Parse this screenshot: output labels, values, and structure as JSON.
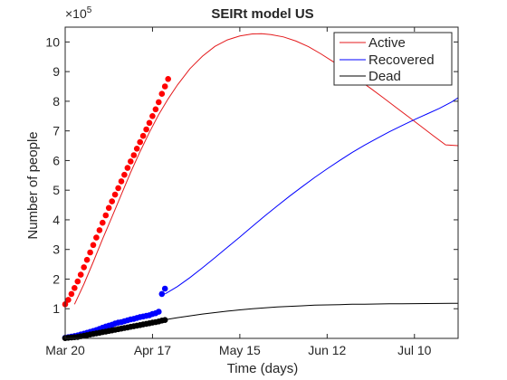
{
  "chart_data": {
    "type": "line",
    "title": "SEIRt model US",
    "xlabel": "Time (days)",
    "ylabel": "Number of people",
    "y_multiplier": "×10",
    "y_multiplier_exponent": "5",
    "xlim": [
      0,
      126
    ],
    "ylim": [
      0,
      10.5
    ],
    "x_ticks": [
      {
        "day": 0,
        "label": "Mar 20"
      },
      {
        "day": 28,
        "label": "Apr 17"
      },
      {
        "day": 56,
        "label": "May 15"
      },
      {
        "day": 84,
        "label": "Jun 12"
      },
      {
        "day": 112,
        "label": "Jul 10"
      }
    ],
    "y_ticks": [
      1,
      2,
      3,
      4,
      5,
      6,
      7,
      8,
      9,
      10
    ],
    "legend": {
      "position": "top-right",
      "entries": [
        "Active",
        "Recovered",
        "Dead"
      ]
    },
    "grid": false,
    "series": [
      {
        "name": "Active",
        "kind": "model",
        "color": "#e41a1c",
        "x": [
          3,
          6,
          9,
          12,
          15,
          18,
          21,
          24,
          27,
          30,
          33,
          36,
          40,
          44,
          48,
          52,
          56,
          60,
          63,
          66,
          70,
          74,
          78,
          82,
          86,
          90,
          94,
          98,
          102,
          106,
          110,
          114,
          118,
          122,
          126
        ],
        "y": [
          1.15,
          1.83,
          2.58,
          3.35,
          4.1,
          4.85,
          5.6,
          6.3,
          6.95,
          7.55,
          8.08,
          8.55,
          9.1,
          9.52,
          9.85,
          10.07,
          10.2,
          10.27,
          10.28,
          10.25,
          10.17,
          10.03,
          9.84,
          9.6,
          9.33,
          9.04,
          8.73,
          8.43,
          8.12,
          7.8,
          7.48,
          7.16,
          6.84,
          6.53,
          6.5
        ]
      },
      {
        "name": "Recovered",
        "kind": "model",
        "color": "#0000ff",
        "x": [
          32,
          36,
          40,
          44,
          48,
          52,
          56,
          60,
          64,
          68,
          72,
          76,
          80,
          84,
          88,
          92,
          96,
          100,
          104,
          108,
          112,
          116,
          120,
          124,
          126
        ],
        "y": [
          1.5,
          1.75,
          2.05,
          2.38,
          2.72,
          3.07,
          3.42,
          3.78,
          4.13,
          4.47,
          4.8,
          5.12,
          5.43,
          5.72,
          6.0,
          6.27,
          6.52,
          6.75,
          6.97,
          7.18,
          7.38,
          7.57,
          7.76,
          7.98,
          8.12
        ]
      },
      {
        "name": "Dead",
        "kind": "model",
        "color": "#000000",
        "x": [
          32,
          36,
          40,
          44,
          48,
          52,
          56,
          60,
          64,
          68,
          72,
          76,
          80,
          84,
          88,
          92,
          96,
          100,
          104,
          108,
          112,
          116,
          120,
          124,
          126
        ],
        "y": [
          0.63,
          0.7,
          0.76,
          0.82,
          0.87,
          0.92,
          0.96,
          1.0,
          1.03,
          1.06,
          1.08,
          1.1,
          1.12,
          1.13,
          1.14,
          1.15,
          1.155,
          1.16,
          1.165,
          1.17,
          1.172,
          1.175,
          1.178,
          1.18,
          1.18
        ]
      },
      {
        "name": "Active",
        "kind": "observed",
        "color": "#ff0000",
        "x": [
          0,
          1,
          2,
          3,
          4,
          5,
          6,
          7,
          8,
          9,
          10,
          11,
          12,
          13,
          14,
          15,
          16,
          17,
          18,
          19,
          20,
          21,
          22,
          23,
          24,
          25,
          26,
          27,
          28,
          29,
          30,
          31,
          32,
          33
        ],
        "y": [
          1.15,
          1.3,
          1.5,
          1.7,
          1.92,
          2.15,
          2.4,
          2.65,
          2.9,
          3.15,
          3.4,
          3.65,
          3.9,
          4.15,
          4.4,
          4.62,
          4.85,
          5.07,
          5.3,
          5.52,
          5.75,
          5.97,
          6.18,
          6.4,
          6.62,
          6.83,
          7.05,
          7.27,
          7.5,
          7.73,
          7.97,
          8.25,
          8.5,
          8.75
        ]
      },
      {
        "name": "Recovered",
        "kind": "observed",
        "color": "#0000ff",
        "x": [
          0,
          1,
          2,
          3,
          4,
          5,
          6,
          7,
          8,
          9,
          10,
          11,
          12,
          13,
          14,
          15,
          16,
          17,
          18,
          19,
          20,
          21,
          22,
          23,
          24,
          25,
          26,
          27,
          28,
          29,
          30,
          31,
          32
        ],
        "y": [
          0.02,
          0.04,
          0.06,
          0.08,
          0.1,
          0.13,
          0.16,
          0.19,
          0.22,
          0.25,
          0.28,
          0.32,
          0.36,
          0.4,
          0.43,
          0.46,
          0.5,
          0.53,
          0.55,
          0.58,
          0.61,
          0.64,
          0.66,
          0.69,
          0.72,
          0.74,
          0.76,
          0.78,
          0.82,
          0.85,
          0.9,
          1.5,
          1.68
        ]
      },
      {
        "name": "Dead",
        "kind": "observed",
        "color": "#000000",
        "x": [
          0,
          1,
          2,
          3,
          4,
          5,
          6,
          7,
          8,
          9,
          10,
          11,
          12,
          13,
          14,
          15,
          16,
          17,
          18,
          19,
          20,
          21,
          22,
          23,
          24,
          25,
          26,
          27,
          28,
          29,
          30,
          31,
          32
        ],
        "y": [
          0.01,
          0.02,
          0.03,
          0.04,
          0.05,
          0.07,
          0.09,
          0.11,
          0.13,
          0.15,
          0.17,
          0.19,
          0.21,
          0.23,
          0.25,
          0.27,
          0.29,
          0.31,
          0.33,
          0.35,
          0.37,
          0.39,
          0.41,
          0.43,
          0.45,
          0.47,
          0.49,
          0.51,
          0.53,
          0.55,
          0.57,
          0.6,
          0.62
        ]
      }
    ]
  }
}
